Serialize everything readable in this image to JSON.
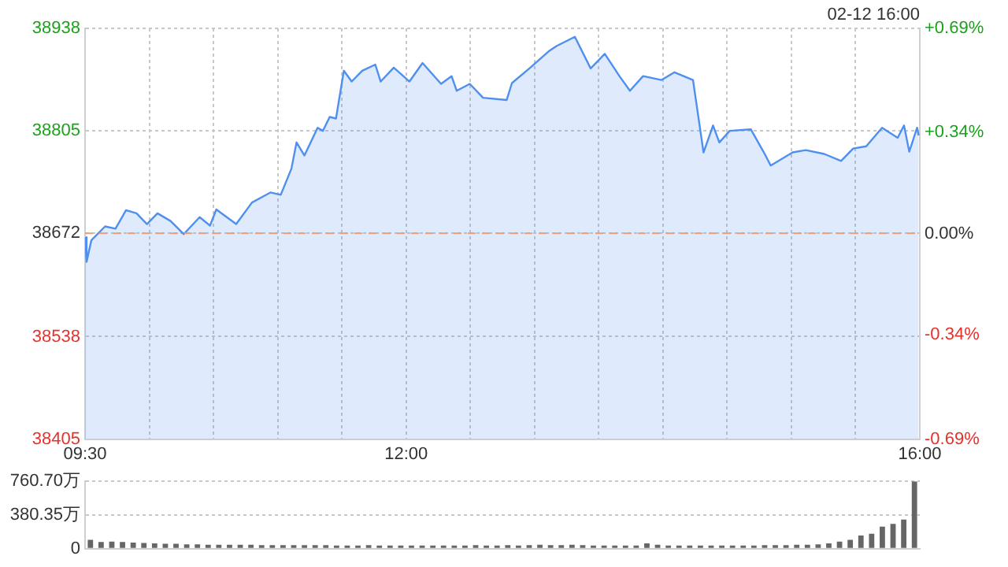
{
  "chart_data": [
    {
      "type": "area",
      "color": "#4e8ff0",
      "grid": true,
      "legend": false,
      "marker": "none",
      "line_style": "solid",
      "annotations": [
        "02-12 16:00"
      ],
      "x": [
        9.5,
        9.512,
        9.549,
        9.656,
        9.737,
        9.819,
        9.901,
        9.982,
        10.064,
        10.166,
        10.269,
        10.392,
        10.473,
        10.522,
        10.677,
        10.8,
        10.943,
        11.024,
        11.107,
        11.147,
        11.208,
        11.311,
        11.352,
        11.405,
        11.454,
        11.515,
        11.576,
        11.658,
        11.76,
        11.802,
        11.904,
        12.026,
        12.128,
        12.272,
        12.354,
        12.394,
        12.496,
        12.599,
        12.783,
        12.824,
        12.967,
        13.109,
        13.171,
        13.314,
        13.437,
        13.547,
        13.661,
        13.743,
        13.845,
        13.989,
        14.09,
        14.234,
        14.316,
        14.39,
        14.439,
        14.52,
        14.684,
        14.786,
        14.839,
        15.01,
        15.113,
        15.256,
        15.387,
        15.481,
        15.583,
        15.706,
        15.828,
        15.877,
        15.918,
        15.979,
        15.991
      ],
      "values": [
        38667,
        38635,
        38663,
        38681,
        38678,
        38702,
        38698,
        38684,
        38698,
        38688,
        38671,
        38693,
        38682,
        38703,
        38684,
        38712,
        38725,
        38722,
        38756,
        38790,
        38773,
        38809,
        38805,
        38823,
        38821,
        38883,
        38869,
        38883,
        38891,
        38869,
        38887,
        38869,
        38893,
        38866,
        38876,
        38857,
        38866,
        38848,
        38845,
        38867,
        38887,
        38908,
        38915,
        38927,
        38886,
        38905,
        38876,
        38857,
        38876,
        38871,
        38881,
        38871,
        38777,
        38812,
        38790,
        38805,
        38807,
        38777,
        38760,
        38777,
        38780,
        38775,
        38766,
        38782,
        38785,
        38809,
        38796,
        38812,
        38778,
        38809,
        38799
      ],
      "xlim": [
        9.5,
        16
      ],
      "xticks": [
        {
          "value": 9.5,
          "label": "09:30"
        },
        {
          "value": 10,
          "label": null
        },
        {
          "value": 10.5,
          "label": null
        },
        {
          "value": 11,
          "label": null
        },
        {
          "value": 11.5,
          "label": null
        },
        {
          "value": 12,
          "label": "12:00"
        },
        {
          "value": 12.5,
          "label": null
        },
        {
          "value": 13,
          "label": null
        },
        {
          "value": 13.5,
          "label": null
        },
        {
          "value": 14,
          "label": null
        },
        {
          "value": 14.5,
          "label": null
        },
        {
          "value": 15,
          "label": null
        },
        {
          "value": 15.5,
          "label": null
        },
        {
          "value": 16,
          "label": "16:00"
        }
      ],
      "ylim": [
        38405,
        38938
      ],
      "yticks": [
        38405,
        38538,
        38672,
        38805,
        38938
      ],
      "y2lim": [
        -0.69,
        0.69
      ],
      "y2ticks": [
        {
          "value": -0.69,
          "label": "-0.69%"
        },
        {
          "value": -0.34,
          "label": "-0.34%"
        },
        {
          "value": 0,
          "label": "0.00%"
        },
        {
          "value": 0.34,
          "label": "+0.34%"
        },
        {
          "value": 0.69,
          "label": "+0.69%"
        }
      ],
      "ref_lines": [
        {
          "axis": "y",
          "value": 38672,
          "color": "#e8a07a",
          "line_style": "dashed"
        }
      ]
    },
    {
      "type": "bar",
      "color": "#666666",
      "grid": "y",
      "legend": false,
      "tick_labels": "y",
      "categories": [
        null,
        null,
        null,
        null,
        null,
        null,
        null,
        null,
        null,
        null,
        null,
        null,
        null,
        null,
        null,
        null,
        null,
        null,
        null,
        null,
        null,
        null,
        null,
        null,
        null,
        null,
        null,
        null,
        null,
        null,
        null,
        null,
        null,
        null,
        null,
        null,
        null,
        null,
        null,
        null,
        null,
        null,
        null,
        null,
        null,
        null,
        null,
        null,
        null,
        null,
        null,
        null,
        null,
        null,
        null,
        null,
        null,
        null,
        null,
        null,
        null,
        null,
        null,
        null,
        null,
        null,
        null,
        null,
        null,
        null,
        null,
        null,
        null,
        null,
        null,
        null,
        null,
        null
      ],
      "values": [
        100,
        75,
        80,
        75,
        70,
        65,
        60,
        55,
        55,
        50,
        50,
        45,
        45,
        45,
        45,
        45,
        40,
        40,
        40,
        40,
        40,
        40,
        40,
        35,
        35,
        35,
        40,
        35,
        35,
        35,
        35,
        35,
        35,
        35,
        35,
        35,
        40,
        35,
        35,
        40,
        35,
        40,
        45,
        40,
        40,
        45,
        40,
        35,
        35,
        35,
        35,
        35,
        60,
        45,
        35,
        35,
        35,
        35,
        35,
        35,
        35,
        35,
        35,
        40,
        40,
        40,
        45,
        45,
        50,
        60,
        80,
        100,
        150,
        170,
        250,
        280,
        330,
        760
      ],
      "ylim": [
        0,
        760.7
      ],
      "yticks": [
        0,
        {
          "value": 380.35,
          "label": "380.35万"
        },
        {
          "value": 760.7,
          "label": "760.70万"
        }
      ]
    }
  ]
}
